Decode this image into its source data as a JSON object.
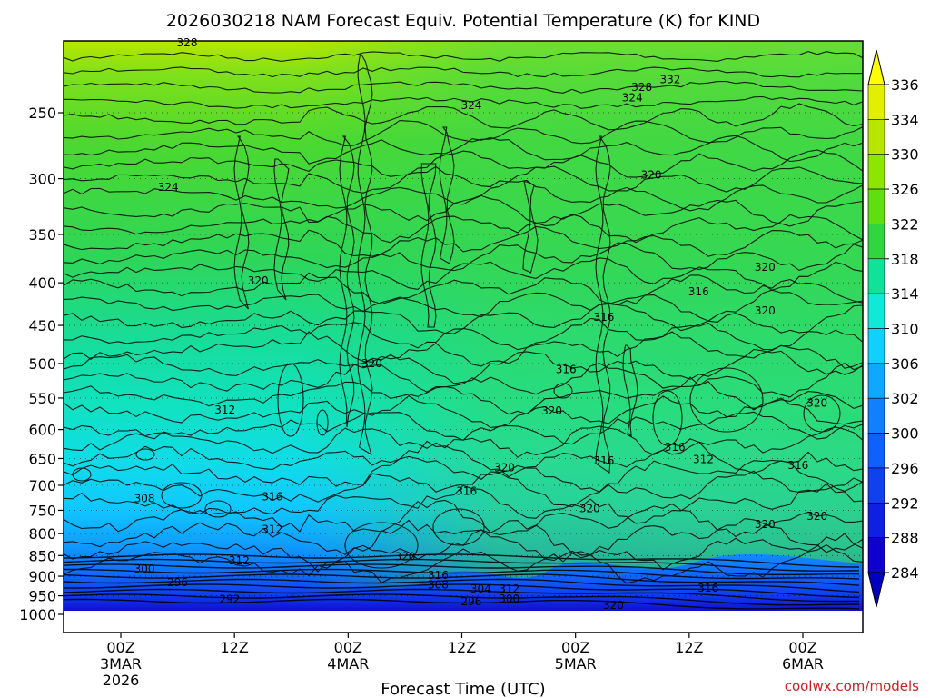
{
  "chart_data": {
    "type": "heatmap",
    "title": "2026030218 NAM Forecast Equiv. Potential Temperature (K) for KIND",
    "xlabel": "Forecast Time (UTC)",
    "ylabel": "",
    "credit": "coolwx.com/models",
    "y_scale": "log-pressure",
    "y_ticks": [
      {
        "value": 250,
        "label": "250"
      },
      {
        "value": 300,
        "label": "300"
      },
      {
        "value": 350,
        "label": "350"
      },
      {
        "value": 400,
        "label": "400"
      },
      {
        "value": 450,
        "label": "450"
      },
      {
        "value": 500,
        "label": "500"
      },
      {
        "value": 550,
        "label": "550"
      },
      {
        "value": 600,
        "label": "600"
      },
      {
        "value": 650,
        "label": "650"
      },
      {
        "value": 700,
        "label": "700"
      },
      {
        "value": 750,
        "label": "750"
      },
      {
        "value": 800,
        "label": "800"
      },
      {
        "value": 850,
        "label": "850"
      },
      {
        "value": 900,
        "label": "900"
      },
      {
        "value": 950,
        "label": "950"
      },
      {
        "value": 1000,
        "label": "1000"
      }
    ],
    "x_ticks": [
      {
        "hour": 6,
        "lines": [
          "00Z",
          "3MAR",
          "2026"
        ]
      },
      {
        "hour": 18,
        "lines": [
          "12Z"
        ]
      },
      {
        "hour": 30,
        "lines": [
          "00Z",
          "4MAR"
        ]
      },
      {
        "hour": 42,
        "lines": [
          "12Z"
        ]
      },
      {
        "hour": 54,
        "lines": [
          "00Z",
          "5MAR"
        ]
      },
      {
        "hour": 66,
        "lines": [
          "12Z"
        ]
      },
      {
        "hour": 78,
        "lines": [
          "00Z",
          "6MAR"
        ]
      }
    ],
    "colorbar": {
      "levels": [
        336,
        334,
        330,
        326,
        322,
        318,
        314,
        310,
        306,
        302,
        300,
        296,
        292,
        288,
        284
      ],
      "colors": [
        "#ffff00",
        "#e0f000",
        "#b8e600",
        "#8ce600",
        "#5fde10",
        "#2fd640",
        "#10e29a",
        "#10e8d8",
        "#10d0ff",
        "#10a8ff",
        "#1080ff",
        "#1060ff",
        "#1040f0",
        "#1020e0",
        "#1000d0",
        "#0000c0"
      ]
    },
    "contour_labels": [
      {
        "t": 13.0,
        "p": 206,
        "v": "328"
      },
      {
        "t": 64.0,
        "p": 228,
        "v": "332"
      },
      {
        "t": 61.0,
        "p": 233,
        "v": "328"
      },
      {
        "t": 60.0,
        "p": 240,
        "v": "324"
      },
      {
        "t": 43.0,
        "p": 245,
        "v": "324"
      },
      {
        "t": 11.0,
        "p": 307,
        "v": "324"
      },
      {
        "t": 62.0,
        "p": 297,
        "v": "320"
      },
      {
        "t": 20.5,
        "p": 398,
        "v": "320"
      },
      {
        "t": 74.0,
        "p": 383,
        "v": "320"
      },
      {
        "t": 67.0,
        "p": 410,
        "v": "316"
      },
      {
        "t": 57.0,
        "p": 440,
        "v": "316"
      },
      {
        "t": 74.0,
        "p": 432,
        "v": "320"
      },
      {
        "t": 32.5,
        "p": 500,
        "v": "320"
      },
      {
        "t": 53.0,
        "p": 508,
        "v": "316"
      },
      {
        "t": 17.0,
        "p": 568,
        "v": "312"
      },
      {
        "t": 51.5,
        "p": 570,
        "v": "320"
      },
      {
        "t": 79.5,
        "p": 558,
        "v": "320"
      },
      {
        "t": 57.0,
        "p": 654,
        "v": "316"
      },
      {
        "t": 64.5,
        "p": 630,
        "v": "316"
      },
      {
        "t": 67.5,
        "p": 652,
        "v": "312"
      },
      {
        "t": 77.5,
        "p": 662,
        "v": "316"
      },
      {
        "t": 46.5,
        "p": 667,
        "v": "320"
      },
      {
        "t": 42.5,
        "p": 712,
        "v": "316"
      },
      {
        "t": 8.5,
        "p": 726,
        "v": "308"
      },
      {
        "t": 22.0,
        "p": 722,
        "v": "316"
      },
      {
        "t": 55.5,
        "p": 746,
        "v": "320"
      },
      {
        "t": 22.0,
        "p": 791,
        "v": "312"
      },
      {
        "t": 79.5,
        "p": 762,
        "v": "320"
      },
      {
        "t": 74.0,
        "p": 780,
        "v": "320"
      },
      {
        "t": 18.5,
        "p": 862,
        "v": "312"
      },
      {
        "t": 36.0,
        "p": 853,
        "v": "320"
      },
      {
        "t": 8.5,
        "p": 882,
        "v": "300"
      },
      {
        "t": 12.0,
        "p": 916,
        "v": "296"
      },
      {
        "t": 39.5,
        "p": 898,
        "v": "316"
      },
      {
        "t": 39.5,
        "p": 922,
        "v": "308"
      },
      {
        "t": 44.0,
        "p": 932,
        "v": "304"
      },
      {
        "t": 47.0,
        "p": 932,
        "v": "312"
      },
      {
        "t": 68.0,
        "p": 930,
        "v": "316"
      },
      {
        "t": 17.5,
        "p": 960,
        "v": "292"
      },
      {
        "t": 43.0,
        "p": 966,
        "v": "296"
      },
      {
        "t": 47.0,
        "p": 958,
        "v": "300"
      },
      {
        "t": 58.0,
        "p": 975,
        "v": "320"
      }
    ]
  }
}
